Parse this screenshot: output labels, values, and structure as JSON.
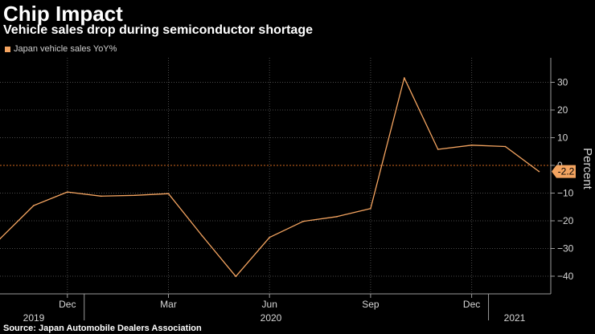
{
  "header": {
    "title": "Chip Impact",
    "subtitle": "Vehicle sales drop during semiconductor shortage"
  },
  "legend": {
    "label": "Japan vehicle sales YoY%",
    "color": "#f4a460"
  },
  "source": "Source: Japan Automobile Dealers Association",
  "chart_data": {
    "type": "line",
    "title": "Chip Impact",
    "subtitle": "Vehicle sales drop during semiconductor shortage",
    "ylabel": "Percent",
    "ylim": [
      -45,
      40
    ],
    "yticks": [
      30,
      20,
      10,
      0,
      -10,
      -20,
      -30,
      -40
    ],
    "grid": true,
    "legend_position": "top-left",
    "x_tick_labels": [
      "Dec",
      "Mar",
      "Jun",
      "Sep",
      "Dec"
    ],
    "x_year_labels": [
      "2019",
      "2020",
      "2021"
    ],
    "series": [
      {
        "name": "Japan vehicle sales YoY%",
        "color": "#f4a460",
        "x": [
          "2019-10",
          "2019-11",
          "2019-12",
          "2020-01",
          "2020-02",
          "2020-03",
          "2020-04",
          "2020-05",
          "2020-06",
          "2020-07",
          "2020-08",
          "2020-09",
          "2020-10",
          "2020-11",
          "2020-12",
          "2021-01",
          "2021-02"
        ],
        "values": [
          -26.5,
          -14.5,
          -9.6,
          -11.1,
          -10.8,
          -10.2,
          -25.4,
          -40.1,
          -26.0,
          -20.2,
          -18.5,
          -15.6,
          31.6,
          5.8,
          7.3,
          6.8,
          -2.2
        ]
      }
    ],
    "last_value_label": "-2.2",
    "reference_line": 0
  }
}
